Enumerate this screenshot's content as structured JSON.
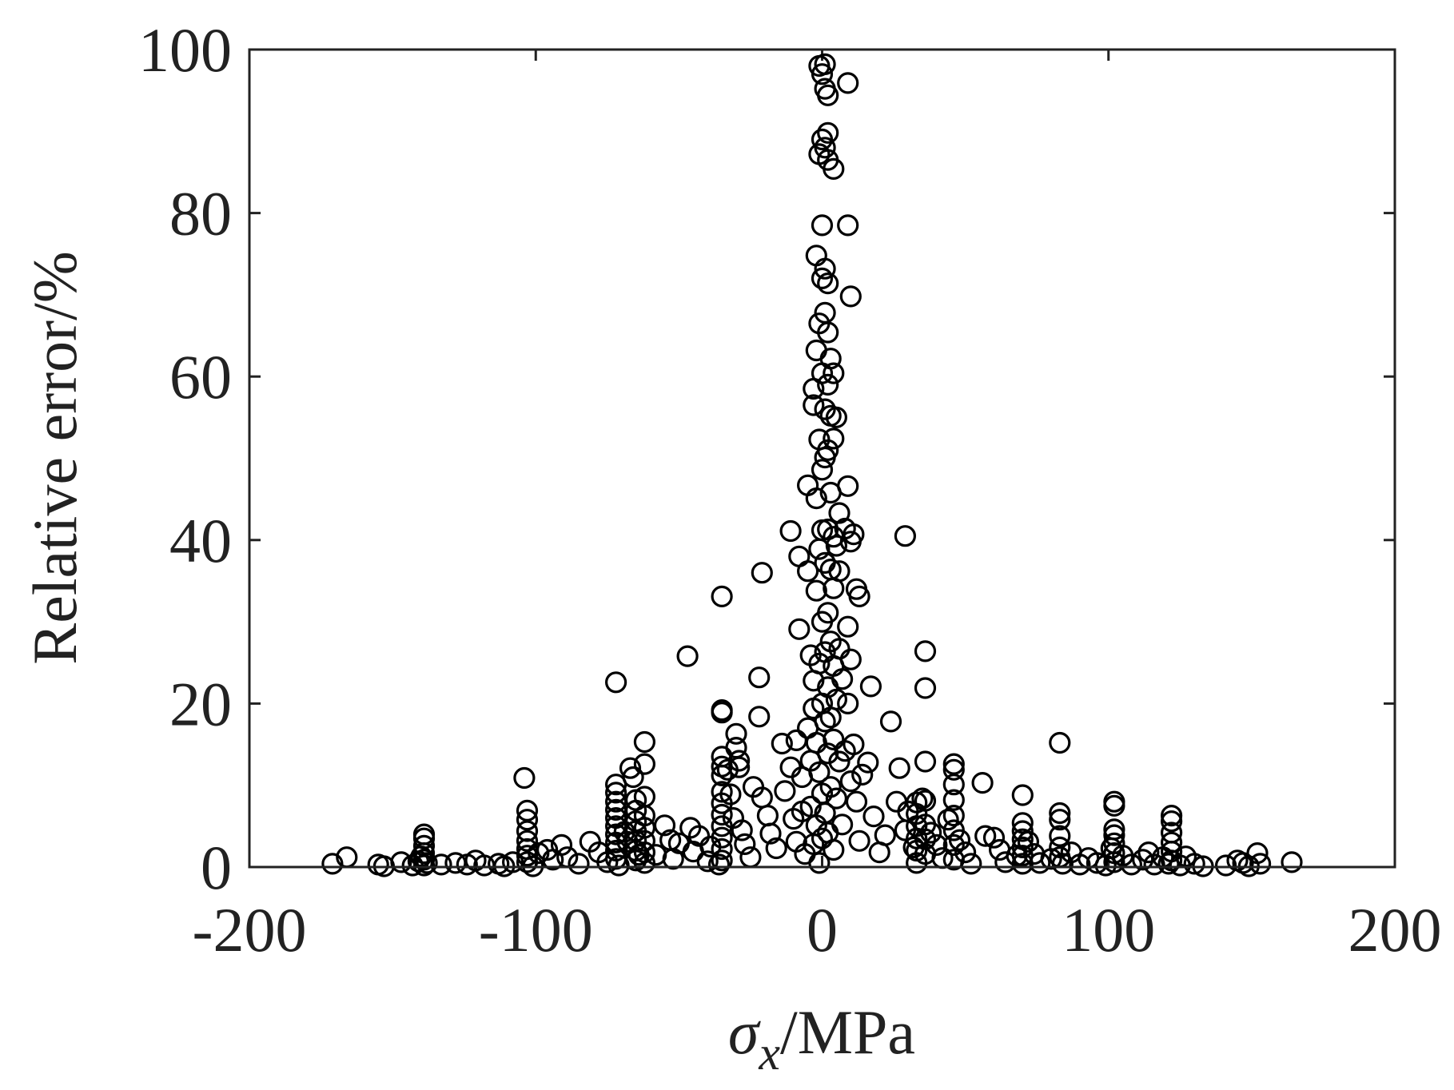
{
  "chart_data": {
    "type": "scatter",
    "title": "",
    "xlabel": {
      "symbol": "σ",
      "subscript": "x",
      "rest": "/MPa"
    },
    "ylabel": "Relative error/%",
    "xlim": [
      -200,
      200
    ],
    "ylim": [
      0,
      100
    ],
    "x_ticks": [
      -200,
      -100,
      0,
      100,
      200
    ],
    "x_tick_labels": [
      "-200",
      "-100",
      "0",
      "100",
      "200"
    ],
    "y_ticks": [
      0,
      20,
      40,
      60,
      80,
      100
    ],
    "y_tick_labels": [
      "0",
      "20",
      "40",
      "60",
      "80",
      "100"
    ],
    "grid": false,
    "marker": "open-circle",
    "color": "#000000",
    "series": [
      {
        "points": [
          [
            -171,
            0.4
          ],
          [
            -166,
            1.2
          ],
          [
            -155,
            0.3
          ],
          [
            -153,
            0.1
          ],
          [
            -147,
            0.6
          ],
          [
            -143,
            0.2
          ],
          [
            -141,
            0.7
          ],
          [
            -139,
            4.0
          ],
          [
            -139,
            3.5
          ],
          [
            -139,
            2.6
          ],
          [
            -139,
            1.7
          ],
          [
            -139,
            0.9
          ],
          [
            -139,
            0.2
          ],
          [
            -140,
            1.3
          ],
          [
            -138,
            0.5
          ],
          [
            -133,
            0.3
          ],
          [
            -128,
            0.5
          ],
          [
            -124,
            0.3
          ],
          [
            -121,
            0.8
          ],
          [
            -118,
            0.2
          ],
          [
            -113,
            0.4
          ],
          [
            -111,
            0.1
          ],
          [
            -108,
            0.6
          ],
          [
            -104,
            10.9
          ],
          [
            -103,
            6.9
          ],
          [
            -103,
            5.8
          ],
          [
            -103,
            4.4
          ],
          [
            -103,
            3.2
          ],
          [
            -103,
            2.2
          ],
          [
            -103,
            1.4
          ],
          [
            -103,
            0.6
          ],
          [
            -101,
            0.1
          ],
          [
            -99,
            1.7
          ],
          [
            -96,
            2.1
          ],
          [
            -94,
            0.9
          ],
          [
            -91,
            2.7
          ],
          [
            -89,
            1.2
          ],
          [
            -85,
            0.4
          ],
          [
            -81,
            3.1
          ],
          [
            -78,
            1.8
          ],
          [
            -75,
            0.6
          ],
          [
            -72,
            22.6
          ],
          [
            -72,
            10.1
          ],
          [
            -72,
            9.1
          ],
          [
            -72,
            8.0
          ],
          [
            -72,
            7.0
          ],
          [
            -72,
            6.0
          ],
          [
            -72,
            5.0
          ],
          [
            -72,
            4.0
          ],
          [
            -72,
            3.0
          ],
          [
            -72,
            2.0
          ],
          [
            -72,
            1.0
          ],
          [
            -71,
            0.2
          ],
          [
            -69,
            4.3
          ],
          [
            -68,
            3.1
          ],
          [
            -67,
            12.1
          ],
          [
            -66,
            11.0
          ],
          [
            -65,
            8.2
          ],
          [
            -65,
            6.9
          ],
          [
            -65,
            5.6
          ],
          [
            -65,
            4.4
          ],
          [
            -65,
            3.2
          ],
          [
            -65,
            2.0
          ],
          [
            -65,
            0.8
          ],
          [
            -64,
            1.5
          ],
          [
            -62,
            15.3
          ],
          [
            -62,
            12.6
          ],
          [
            -62,
            8.6
          ],
          [
            -62,
            6.3
          ],
          [
            -62,
            4.8
          ],
          [
            -62,
            3.2
          ],
          [
            -62,
            1.8
          ],
          [
            -62,
            0.5
          ],
          [
            -58,
            1.5
          ],
          [
            -55,
            5.1
          ],
          [
            -53,
            3.3
          ],
          [
            -52,
            1.0
          ],
          [
            -50,
            2.9
          ],
          [
            -47,
            25.8
          ],
          [
            -46,
            4.8
          ],
          [
            -45,
            1.9
          ],
          [
            -43,
            3.8
          ],
          [
            -40,
            0.7
          ],
          [
            -39,
            2.5
          ],
          [
            -36,
            0.3
          ],
          [
            -35,
            33.1
          ],
          [
            -35,
            19.2
          ],
          [
            -35,
            18.9
          ],
          [
            -35,
            13.5
          ],
          [
            -35,
            12.3
          ],
          [
            -35,
            11.2
          ],
          [
            -35,
            9.2
          ],
          [
            -35,
            7.8
          ],
          [
            -35,
            6.4
          ],
          [
            -35,
            5.0
          ],
          [
            -35,
            3.6
          ],
          [
            -35,
            2.2
          ],
          [
            -35,
            0.8
          ],
          [
            -33,
            11.9
          ],
          [
            -32,
            8.9
          ],
          [
            -31,
            6.0
          ],
          [
            -30,
            16.3
          ],
          [
            -30,
            14.6
          ],
          [
            -29,
            13.0
          ],
          [
            -29,
            12.2
          ],
          [
            -28,
            4.5
          ],
          [
            -27,
            2.8
          ],
          [
            -25,
            1.2
          ],
          [
            -24,
            9.8
          ],
          [
            -22,
            23.2
          ],
          [
            -22,
            18.4
          ],
          [
            -21,
            36.0
          ],
          [
            -21,
            8.5
          ],
          [
            -19,
            6.3
          ],
          [
            -18,
            4.1
          ],
          [
            -16,
            2.3
          ],
          [
            -14,
            15.1
          ],
          [
            -13,
            9.3
          ],
          [
            -11,
            41.1
          ],
          [
            -11,
            12.2
          ],
          [
            -10,
            5.9
          ],
          [
            -9,
            15.5
          ],
          [
            -9,
            3.1
          ],
          [
            -8,
            29.1
          ],
          [
            -8,
            38.0
          ],
          [
            -7,
            11.0
          ],
          [
            -7,
            6.8
          ],
          [
            -6,
            1.6
          ],
          [
            -5,
            17.0
          ],
          [
            -5,
            36.2
          ],
          [
            -5,
            46.7
          ],
          [
            -4,
            25.9
          ],
          [
            -4,
            13.0
          ],
          [
            -4,
            7.4
          ],
          [
            -3,
            56.5
          ],
          [
            -3,
            58.5
          ],
          [
            -3,
            22.8
          ],
          [
            -3,
            19.4
          ],
          [
            -3,
            2.8
          ],
          [
            -2,
            74.8
          ],
          [
            -2,
            63.2
          ],
          [
            -2,
            45.1
          ],
          [
            -2,
            33.8
          ],
          [
            -2,
            15.2
          ],
          [
            -2,
            5.1
          ],
          [
            -1,
            98.0
          ],
          [
            -1,
            87.2
          ],
          [
            -1,
            66.5
          ],
          [
            -1,
            52.3
          ],
          [
            -1,
            38.9
          ],
          [
            -1,
            24.9
          ],
          [
            -1,
            11.6
          ],
          [
            -1,
            0.5
          ],
          [
            0,
            97.0
          ],
          [
            0,
            89.0
          ],
          [
            0,
            78.5
          ],
          [
            0,
            72.0
          ],
          [
            0,
            60.4
          ],
          [
            0,
            48.6
          ],
          [
            0,
            41.2
          ],
          [
            0,
            30.0
          ],
          [
            0,
            20.0
          ],
          [
            0,
            9.0
          ],
          [
            0,
            3.5
          ],
          [
            1,
            98.2
          ],
          [
            1,
            95.2
          ],
          [
            1,
            88.0
          ],
          [
            1,
            73.2
          ],
          [
            1,
            67.8
          ],
          [
            1,
            56.0
          ],
          [
            1,
            50.1
          ],
          [
            1,
            37.2
          ],
          [
            1,
            26.3
          ],
          [
            1,
            17.8
          ],
          [
            1,
            6.6
          ],
          [
            2,
            94.4
          ],
          [
            2,
            89.8
          ],
          [
            2,
            86.5
          ],
          [
            2,
            71.4
          ],
          [
            2,
            65.4
          ],
          [
            2,
            59.0
          ],
          [
            2,
            51.0
          ],
          [
            2,
            41.3
          ],
          [
            2,
            31.1
          ],
          [
            2,
            22.0
          ],
          [
            2,
            13.9
          ],
          [
            2,
            4.2
          ],
          [
            3,
            62.2
          ],
          [
            3,
            55.2
          ],
          [
            3,
            45.8
          ],
          [
            3,
            36.4
          ],
          [
            3,
            27.6
          ],
          [
            3,
            18.3
          ],
          [
            3,
            9.8
          ],
          [
            4,
            85.4
          ],
          [
            4,
            60.4
          ],
          [
            4,
            52.4
          ],
          [
            4,
            40.4
          ],
          [
            4,
            34.1
          ],
          [
            4,
            24.6
          ],
          [
            4,
            15.6
          ],
          [
            4,
            2.1
          ],
          [
            5,
            55.0
          ],
          [
            5,
            39.3
          ],
          [
            5,
            20.5
          ],
          [
            5,
            8.4
          ],
          [
            6,
            43.3
          ],
          [
            6,
            36.2
          ],
          [
            6,
            26.7
          ],
          [
            6,
            12.9
          ],
          [
            7,
            23.0
          ],
          [
            7,
            5.2
          ],
          [
            8,
            41.4
          ],
          [
            8,
            14.2
          ],
          [
            9,
            95.9
          ],
          [
            9,
            78.5
          ],
          [
            9,
            46.6
          ],
          [
            9,
            29.4
          ],
          [
            9,
            20.0
          ],
          [
            10,
            69.8
          ],
          [
            10,
            39.8
          ],
          [
            10,
            25.4
          ],
          [
            10,
            10.5
          ],
          [
            11,
            40.7
          ],
          [
            11,
            15.0
          ],
          [
            12,
            34.0
          ],
          [
            12,
            8.0
          ],
          [
            13,
            33.1
          ],
          [
            13,
            3.2
          ],
          [
            14,
            11.3
          ],
          [
            16,
            12.8
          ],
          [
            17,
            22.1
          ],
          [
            18,
            6.2
          ],
          [
            20,
            1.8
          ],
          [
            22,
            3.9
          ],
          [
            24,
            17.8
          ],
          [
            26,
            8.0
          ],
          [
            27,
            12.1
          ],
          [
            29,
            40.5
          ],
          [
            29,
            4.5
          ],
          [
            30,
            6.8
          ],
          [
            32,
            2.4
          ],
          [
            33,
            7.9
          ],
          [
            33,
            6.5
          ],
          [
            33,
            5.0
          ],
          [
            33,
            3.5
          ],
          [
            33,
            2.0
          ],
          [
            33,
            0.5
          ],
          [
            35,
            8.4
          ],
          [
            36,
            26.4
          ],
          [
            36,
            21.9
          ],
          [
            36,
            12.9
          ],
          [
            36,
            8.1
          ],
          [
            36,
            5.2
          ],
          [
            36,
            3.4
          ],
          [
            36,
            1.6
          ],
          [
            38,
            4.2
          ],
          [
            40,
            2.7
          ],
          [
            42,
            1.1
          ],
          [
            44,
            5.8
          ],
          [
            46,
            12.6
          ],
          [
            46,
            11.9
          ],
          [
            46,
            10.1
          ],
          [
            46,
            8.2
          ],
          [
            46,
            6.3
          ],
          [
            46,
            4.5
          ],
          [
            46,
            2.7
          ],
          [
            46,
            0.9
          ],
          [
            48,
            3.3
          ],
          [
            50,
            1.8
          ],
          [
            52,
            0.4
          ],
          [
            56,
            10.3
          ],
          [
            57,
            3.8
          ],
          [
            60,
            3.6
          ],
          [
            62,
            2.1
          ],
          [
            64,
            0.6
          ],
          [
            68,
            1.4
          ],
          [
            70,
            8.8
          ],
          [
            70,
            5.4
          ],
          [
            70,
            4.4
          ],
          [
            70,
            3.4
          ],
          [
            70,
            2.4
          ],
          [
            70,
            1.4
          ],
          [
            70,
            0.4
          ],
          [
            72,
            3.1
          ],
          [
            74,
            1.6
          ],
          [
            76,
            0.5
          ],
          [
            80,
            1.0
          ],
          [
            83,
            15.2
          ],
          [
            83,
            6.6
          ],
          [
            83,
            5.8
          ],
          [
            83,
            3.8
          ],
          [
            83,
            2.4
          ],
          [
            83,
            1.2
          ],
          [
            84,
            0.4
          ],
          [
            87,
            1.8
          ],
          [
            90,
            0.3
          ],
          [
            93,
            1.1
          ],
          [
            96,
            0.5
          ],
          [
            99,
            0.2
          ],
          [
            101,
            2.3
          ],
          [
            102,
            8.0
          ],
          [
            102,
            7.5
          ],
          [
            102,
            4.6
          ],
          [
            102,
            3.9
          ],
          [
            102,
            2.9
          ],
          [
            102,
            1.7
          ],
          [
            102,
            0.6
          ],
          [
            105,
            1.4
          ],
          [
            108,
            0.3
          ],
          [
            112,
            0.9
          ],
          [
            114,
            1.8
          ],
          [
            116,
            0.3
          ],
          [
            119,
            1.2
          ],
          [
            121,
            0.4
          ],
          [
            122,
            6.3
          ],
          [
            122,
            5.6
          ],
          [
            122,
            4.2
          ],
          [
            122,
            3.0
          ],
          [
            122,
            1.9
          ],
          [
            122,
            0.8
          ],
          [
            125,
            0.2
          ],
          [
            127,
            1.3
          ],
          [
            130,
            0.4
          ],
          [
            133,
            0.1
          ],
          [
            141,
            0.2
          ],
          [
            145,
            0.8
          ],
          [
            147,
            0.5
          ],
          [
            149,
            0.1
          ],
          [
            152,
            1.7
          ],
          [
            153,
            0.4
          ],
          [
            164,
            0.6
          ]
        ]
      }
    ]
  }
}
